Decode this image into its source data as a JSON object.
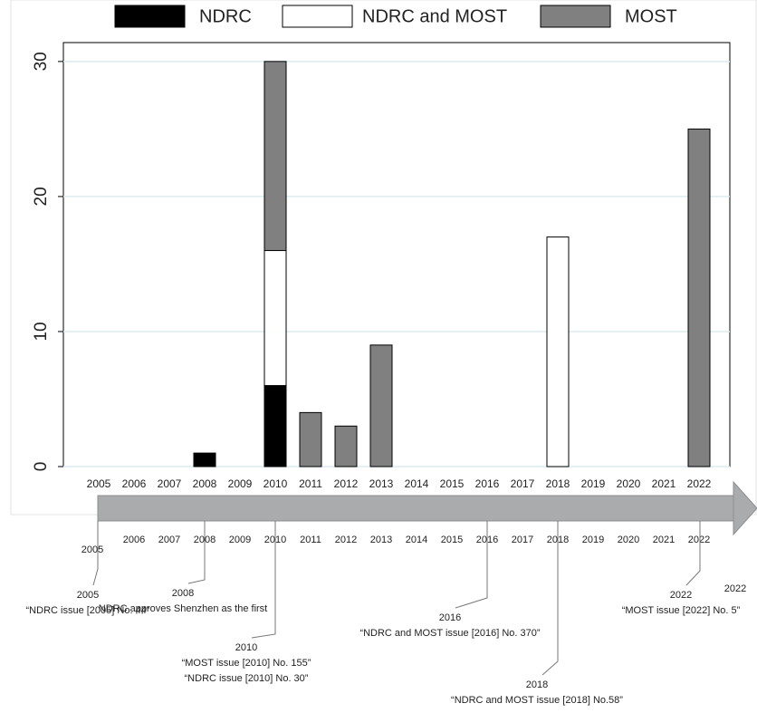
{
  "chart_data": {
    "type": "stacked-bar",
    "categories": [
      "2005",
      "2006",
      "2007",
      "2008",
      "2009",
      "2010",
      "2011",
      "2012",
      "2013",
      "2014",
      "2015",
      "2016",
      "2017",
      "2018",
      "2019",
      "2020",
      "2021",
      "2022"
    ],
    "series": [
      {
        "name": "NDRC",
        "color": "#000000",
        "values": [
          0,
          0,
          0,
          1,
          0,
          6,
          0,
          0,
          0,
          0,
          0,
          0,
          0,
          0,
          0,
          0,
          0,
          0
        ]
      },
      {
        "name": "NDRC and MOST",
        "color": "#ffffff",
        "values": [
          0,
          0,
          0,
          0,
          0,
          10,
          0,
          0,
          0,
          0,
          0,
          0,
          0,
          17,
          0,
          0,
          0,
          0
        ]
      },
      {
        "name": "MOST",
        "color": "#808080",
        "values": [
          0,
          0,
          0,
          0,
          0,
          14,
          4,
          3,
          9,
          0,
          0,
          0,
          0,
          0,
          0,
          0,
          0,
          25
        ]
      }
    ],
    "ylim": [
      0,
      31.4
    ],
    "yticks": [
      0,
      10,
      20,
      30
    ],
    "grid": true
  },
  "timeline": {
    "years": [
      "2005",
      "2006",
      "2007",
      "2008",
      "2009",
      "2010",
      "2011",
      "2012",
      "2013",
      "2014",
      "2015",
      "2016",
      "2017",
      "2018",
      "2019",
      "2020",
      "2021",
      "2022"
    ],
    "end_label": "2022",
    "events": [
      {
        "year": "2005",
        "lines": [
          "“NDRC issue [2005] No. 44”"
        ]
      },
      {
        "year": "2008",
        "lines": [
          "NDRC approves Shenzhen as the first"
        ]
      },
      {
        "year": "2010",
        "lines": [
          "“MOST  issue [2010] No. 155”",
          "“NDRC issue [2010] No. 30”"
        ]
      },
      {
        "year": "2016",
        "lines": [
          "“NDRC and MOST issue [2016] No. 370”"
        ]
      },
      {
        "year": "2018",
        "lines": [
          "“NDRC and MOST issue [2018] No.58”"
        ]
      },
      {
        "year": "2022",
        "lines": [
          "“MOST  issue [2022] No. 5”"
        ]
      }
    ]
  }
}
